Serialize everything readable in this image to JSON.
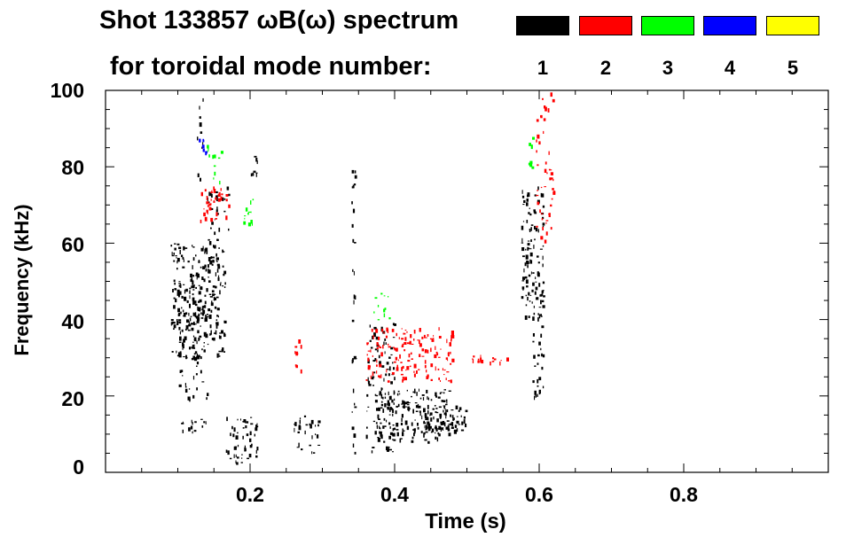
{
  "chart_data": {
    "type": "heatmap",
    "title": "Shot 133857 ωB(ω) spectrum",
    "subtitle": "for toroidal mode number:",
    "xlabel": "Time (s)",
    "ylabel": "Frequency (kHz)",
    "xlim": [
      0.0,
      1.0
    ],
    "ylim": [
      0,
      100
    ],
    "x_ticks": [
      0.2,
      0.4,
      0.6,
      0.8
    ],
    "x_tick_labels": [
      "0.2",
      "0.4",
      "0.6",
      "0.8"
    ],
    "y_ticks": [
      0,
      20,
      40,
      60,
      80,
      100
    ],
    "y_tick_labels": [
      "0",
      "20",
      "40",
      "60",
      "80",
      "100"
    ],
    "legend": [
      {
        "mode": "1",
        "color": "#000000"
      },
      {
        "mode": "2",
        "color": "#ff0000"
      },
      {
        "mode": "3",
        "color": "#00ff00"
      },
      {
        "mode": "4",
        "color": "#0000ff"
      },
      {
        "mode": "5",
        "color": "#ffff00"
      }
    ],
    "regions": [
      {
        "mode": "1",
        "t": [
          0.09,
          0.165
        ],
        "f": [
          30,
          60
        ],
        "density": 0.6
      },
      {
        "mode": "1",
        "t": [
          0.1,
          0.14
        ],
        "f": [
          10,
          45
        ],
        "density": 0.25
      },
      {
        "mode": "1",
        "t": [
          0.14,
          0.17
        ],
        "f": [
          60,
          75
        ],
        "density": 0.35
      },
      {
        "mode": "1",
        "t": [
          0.125,
          0.135
        ],
        "f": [
          75,
          100
        ],
        "density": 0.2
      },
      {
        "mode": "1",
        "t": [
          0.165,
          0.21
        ],
        "f": [
          2,
          15
        ],
        "density": 0.45
      },
      {
        "mode": "1",
        "t": [
          0.2,
          0.21
        ],
        "f": [
          78,
          83
        ],
        "density": 0.8
      },
      {
        "mode": "1",
        "t": [
          0.26,
          0.295
        ],
        "f": [
          5,
          15
        ],
        "density": 0.4
      },
      {
        "mode": "1",
        "t": [
          0.34,
          0.345
        ],
        "f": [
          5,
          80
        ],
        "density": 0.4
      },
      {
        "mode": "1",
        "t": [
          0.37,
          0.48
        ],
        "f": [
          8,
          22
        ],
        "density": 0.6
      },
      {
        "mode": "1",
        "t": [
          0.36,
          0.4
        ],
        "f": [
          5,
          40
        ],
        "density": 0.3
      },
      {
        "mode": "1",
        "t": [
          0.43,
          0.5
        ],
        "f": [
          10,
          18
        ],
        "density": 0.55
      },
      {
        "mode": "1",
        "t": [
          0.575,
          0.605
        ],
        "f": [
          40,
          75
        ],
        "density": 0.55
      },
      {
        "mode": "1",
        "t": [
          0.59,
          0.605
        ],
        "f": [
          20,
          45
        ],
        "density": 0.4
      },
      {
        "mode": "2",
        "t": [
          0.13,
          0.17
        ],
        "f": [
          66,
          75
        ],
        "density": 0.5
      },
      {
        "mode": "2",
        "t": [
          0.36,
          0.48
        ],
        "f": [
          24,
          38
        ],
        "density": 0.45
      },
      {
        "mode": "2",
        "t": [
          0.505,
          0.56
        ],
        "f": [
          29,
          31
        ],
        "density": 0.8
      },
      {
        "mode": "2",
        "t": [
          0.26,
          0.27
        ],
        "f": [
          25,
          35
        ],
        "density": 0.5
      },
      {
        "mode": "2",
        "t": [
          0.595,
          0.62
        ],
        "f": [
          60,
          100
        ],
        "density": 0.25
      },
      {
        "mode": "3",
        "t": [
          0.14,
          0.16
        ],
        "f": [
          76,
          86
        ],
        "density": 0.3
      },
      {
        "mode": "3",
        "t": [
          0.19,
          0.205
        ],
        "f": [
          64,
          72
        ],
        "density": 0.5
      },
      {
        "mode": "3",
        "t": [
          0.37,
          0.4
        ],
        "f": [
          40,
          47
        ],
        "density": 0.3
      },
      {
        "mode": "3",
        "t": [
          0.585,
          0.595
        ],
        "f": [
          80,
          88
        ],
        "density": 0.4
      },
      {
        "mode": "4",
        "t": [
          0.125,
          0.14
        ],
        "f": [
          83,
          88
        ],
        "density": 0.35
      }
    ]
  }
}
